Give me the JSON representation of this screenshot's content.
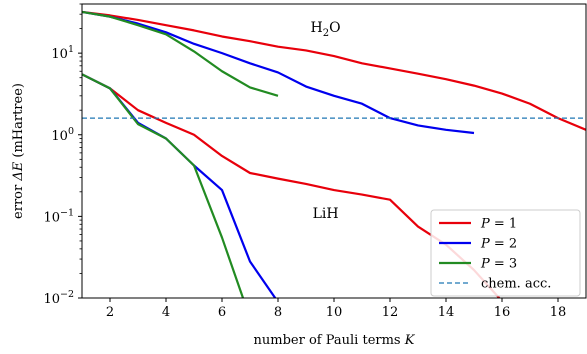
{
  "chart_data": {
    "type": "line",
    "xlabel": "number of Pauli terms K",
    "ylabel": "error ΔE (mHartree)",
    "xlim": [
      1,
      19
    ],
    "ylim": [
      0.01,
      40
    ],
    "yscale": "log",
    "xticks": [
      "2",
      "4",
      "6",
      "8",
      "10",
      "12",
      "14",
      "16",
      "18"
    ],
    "yticks": [
      {
        "value": 0.01,
        "base": "10",
        "exp": "−2"
      },
      {
        "value": 0.1,
        "base": "10",
        "exp": "−1"
      },
      {
        "value": 1,
        "base": "10",
        "exp": "0"
      },
      {
        "value": 10,
        "base": "10",
        "exp": "1"
      }
    ],
    "grid": false,
    "annotations": [
      {
        "text": "H",
        "sub": "2",
        "tail": "O",
        "x": 9.7,
        "y": 21
      },
      {
        "text": "LiH",
        "sub": "",
        "tail": "",
        "x": 9.7,
        "y": 0.11
      }
    ],
    "legend": {
      "placement": "lower-right",
      "entries": [
        {
          "label": "P = 1",
          "color": "#e8000b",
          "style": "solid"
        },
        {
          "label": "P = 2",
          "color": "#0000ee",
          "style": "solid"
        },
        {
          "label": "P = 3",
          "color": "#228b22",
          "style": "solid"
        },
        {
          "label": "chem. acc.",
          "color": "#1f77b4",
          "style": "dashed"
        }
      ]
    },
    "reference_line": {
      "name": "chem. acc.",
      "y": 1.6,
      "color": "#1f77b4"
    },
    "series": [
      {
        "molecule": "H2O",
        "color": "#e8000b",
        "legend": 0,
        "x": [
          1,
          2,
          3,
          4,
          5,
          6,
          7,
          8,
          9,
          10,
          11,
          12,
          13,
          14,
          15,
          16,
          17,
          18,
          19
        ],
        "y": [
          32,
          29,
          25.5,
          22,
          19,
          16,
          14,
          12,
          10.8,
          9.2,
          7.5,
          6.5,
          5.6,
          4.8,
          4.0,
          3.2,
          2.4,
          1.6,
          1.15
        ]
      },
      {
        "molecule": "H2O",
        "color": "#0000ee",
        "legend": 1,
        "x": [
          1,
          2,
          3,
          4,
          5,
          6,
          7,
          8,
          9,
          10,
          11,
          12,
          13,
          14,
          15
        ],
        "y": [
          32,
          28,
          23,
          18,
          13,
          10,
          7.5,
          5.8,
          3.9,
          3.0,
          2.4,
          1.6,
          1.3,
          1.15,
          1.05
        ]
      },
      {
        "molecule": "H2O",
        "color": "#228b22",
        "legend": 2,
        "x": [
          1,
          2,
          3,
          4,
          5,
          6,
          7,
          8
        ],
        "y": [
          32,
          28,
          22,
          17,
          10.5,
          6.0,
          3.8,
          3.0
        ]
      },
      {
        "molecule": "LiH",
        "color": "#e8000b",
        "legend": 0,
        "x": [
          1,
          2,
          3,
          4,
          5,
          6,
          7,
          8,
          9,
          10,
          11,
          12,
          13,
          14,
          15,
          15.9
        ],
        "y": [
          5.5,
          3.7,
          2.0,
          1.4,
          1.0,
          0.55,
          0.34,
          0.29,
          0.25,
          0.21,
          0.185,
          0.16,
          0.075,
          0.045,
          0.022,
          0.01
        ]
      },
      {
        "molecule": "LiH",
        "color": "#0000ee",
        "legend": 1,
        "x": [
          1,
          2,
          3,
          4,
          5,
          6,
          7,
          7.9
        ],
        "y": [
          5.5,
          3.7,
          1.4,
          0.9,
          0.42,
          0.21,
          0.028,
          0.01
        ]
      },
      {
        "molecule": "LiH",
        "color": "#228b22",
        "legend": 2,
        "x": [
          1,
          2,
          3,
          4,
          5,
          6,
          6.75
        ],
        "y": [
          5.5,
          3.7,
          1.35,
          0.9,
          0.42,
          0.055,
          0.01
        ]
      }
    ]
  }
}
